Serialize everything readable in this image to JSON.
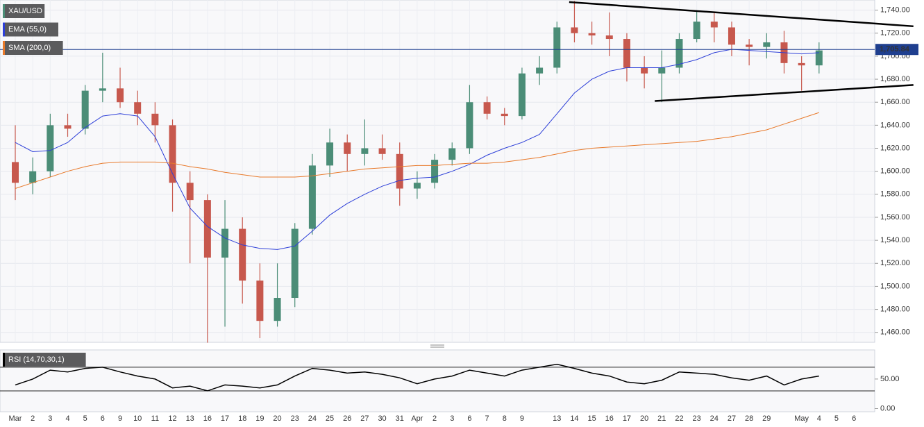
{
  "chart_data": [
    {
      "type": "candlestick",
      "categories": [
        "Mar",
        "2",
        "3",
        "4",
        "5",
        "6",
        "9",
        "10",
        "11",
        "12",
        "13",
        "16",
        "17",
        "18",
        "19",
        "20",
        "23",
        "24",
        "25",
        "26",
        "27",
        "30",
        "31",
        "Apr",
        "2",
        "3",
        "6",
        "7",
        "8",
        "9",
        null,
        "13",
        "14",
        "15",
        "16",
        "17",
        "20",
        "21",
        "22",
        "23",
        "24",
        "27",
        "28",
        "29",
        null,
        "May",
        "4",
        "5",
        "6"
      ],
      "series": [
        {
          "name": "XAU/USD",
          "up_color": "#4b8d77",
          "down_color": "#c7584d",
          "open": [
            1608,
            1590,
            1600,
            1640,
            1637,
            1670,
            1672,
            1660,
            1650,
            1640,
            1590,
            1575,
            1525,
            1550,
            1505,
            1470,
            1490,
            1550,
            1605,
            1625,
            1615,
            1620,
            1615,
            1585,
            1590,
            1610,
            1620,
            1660,
            1650,
            1648,
            1685,
            1690,
            1725,
            1720,
            1718,
            1715,
            1690,
            1685,
            1690,
            1715,
            1730,
            1725,
            1710,
            1708,
            1712,
            1694,
            1692,
            null,
            null
          ],
          "high": [
            1640,
            1612,
            1650,
            1650,
            1675,
            1703,
            1690,
            1670,
            1660,
            1645,
            1600,
            1580,
            1575,
            1560,
            1520,
            1520,
            1555,
            1615,
            1637,
            1632,
            1645,
            1632,
            1625,
            1600,
            1615,
            1625,
            1675,
            1665,
            1655,
            1690,
            1700,
            1730,
            1748,
            1730,
            1738,
            1720,
            1700,
            1705,
            1720,
            1740,
            1738,
            1730,
            1715,
            1720,
            1722,
            1700,
            1712,
            null,
            null
          ],
          "low": [
            1575,
            1580,
            1595,
            1630,
            1632,
            1660,
            1655,
            1640,
            1625,
            1565,
            1520,
            1451,
            1465,
            1485,
            1455,
            1465,
            1482,
            1545,
            1595,
            1600,
            1605,
            1610,
            1570,
            1576,
            1585,
            1605,
            1615,
            1645,
            1640,
            1645,
            1675,
            1685,
            1712,
            1710,
            1700,
            1678,
            1672,
            1660,
            1685,
            1712,
            1712,
            1700,
            1692,
            1698,
            1685,
            1670,
            1685,
            null,
            null
          ],
          "close": [
            1590,
            1600,
            1640,
            1637,
            1670,
            1672,
            1660,
            1650,
            1640,
            1590,
            1575,
            1525,
            1550,
            1505,
            1470,
            1490,
            1550,
            1605,
            1625,
            1615,
            1620,
            1615,
            1585,
            1590,
            1610,
            1620,
            1660,
            1650,
            1648,
            1685,
            1690,
            1725,
            1720,
            1718,
            1715,
            1690,
            1685,
            1690,
            1715,
            1730,
            1725,
            1710,
            1708,
            1712,
            1694,
            1692,
            1705,
            null,
            null
          ]
        },
        {
          "name": "EMA (55,0)",
          "color": "#2d3fd8",
          "values": [
            1625,
            1617,
            1618,
            1625,
            1638,
            1648,
            1650,
            1648,
            1630,
            1598,
            1568,
            1552,
            1542,
            1536,
            1533,
            1532,
            1535,
            1548,
            1562,
            1572,
            1580,
            1587,
            1592,
            1594,
            1595,
            1600,
            1606,
            1614,
            1620,
            1625,
            1632,
            1650,
            1668,
            1680,
            1687,
            1690,
            1690,
            1690,
            1693,
            1697,
            1703,
            1706,
            1705,
            1704,
            1703,
            1702,
            1703,
            null,
            null
          ]
        },
        {
          "name": "SMA (200,0)",
          "color": "#e8792a",
          "values": [
            1585,
            1590,
            1595,
            1600,
            1604,
            1607,
            1608,
            1608,
            1608,
            1607,
            1604,
            1602,
            1599,
            1597,
            1595,
            1595,
            1595,
            1596,
            1598,
            1600,
            1602,
            1603,
            1604,
            1605,
            1605,
            1606,
            1607,
            1607,
            1608,
            1610,
            1612,
            1615,
            1618,
            1620,
            1621,
            1622,
            1623,
            1624,
            1625,
            1626,
            1628,
            1630,
            1633,
            1636,
            1641,
            1646,
            1651,
            null,
            null
          ]
        }
      ],
      "ylim": [
        1452,
        1747
      ],
      "yticks": [
        {
          "value": 1460,
          "label": "1,460.00"
        },
        {
          "value": 1480,
          "label": "1,480.00"
        },
        {
          "value": 1500,
          "label": "1,500.00"
        },
        {
          "value": 1520,
          "label": "1,520.00"
        },
        {
          "value": 1540,
          "label": "1,540.00"
        },
        {
          "value": 1560,
          "label": "1,560.00"
        },
        {
          "value": 1580,
          "label": "1,580.00"
        },
        {
          "value": 1600,
          "label": "1,600.00"
        },
        {
          "value": 1620,
          "label": "1,620.00"
        },
        {
          "value": 1640,
          "label": "1,640.00"
        },
        {
          "value": 1660,
          "label": "1,660.00"
        },
        {
          "value": 1680,
          "label": "1,680.00"
        },
        {
          "value": 1700,
          "label": "1,700.00"
        },
        {
          "value": 1720,
          "label": "1,720.00"
        },
        {
          "value": 1740,
          "label": "1,740.00"
        }
      ],
      "last_price": {
        "value": 1705.84,
        "label": "1,705.84",
        "color": "#1f3f8f"
      },
      "trendlines": [
        {
          "x": [
            31.7,
            51.4
          ],
          "y": [
            1747,
            1726
          ]
        },
        {
          "x": [
            36.6,
            51.4
          ],
          "y": [
            1661,
            1675
          ]
        }
      ],
      "grid": true
    },
    {
      "type": "line",
      "series": [
        {
          "name": "RSI (14,70,30,1)",
          "color": "#000000",
          "values": [
            40,
            50,
            65,
            62,
            68,
            70,
            62,
            55,
            50,
            35,
            38,
            30,
            40,
            38,
            35,
            40,
            55,
            68,
            65,
            60,
            62,
            58,
            52,
            42,
            50,
            55,
            65,
            60,
            55,
            65,
            70,
            75,
            68,
            60,
            55,
            45,
            42,
            48,
            62,
            60,
            58,
            52,
            48,
            55,
            40,
            50,
            55,
            null,
            null
          ]
        }
      ],
      "ylim": [
        0,
        98
      ],
      "yticks": [
        {
          "value": 50,
          "label": "50.00"
        },
        {
          "value": 0,
          "label": "0.00"
        }
      ],
      "levels": [
        70,
        30
      ]
    }
  ]
}
